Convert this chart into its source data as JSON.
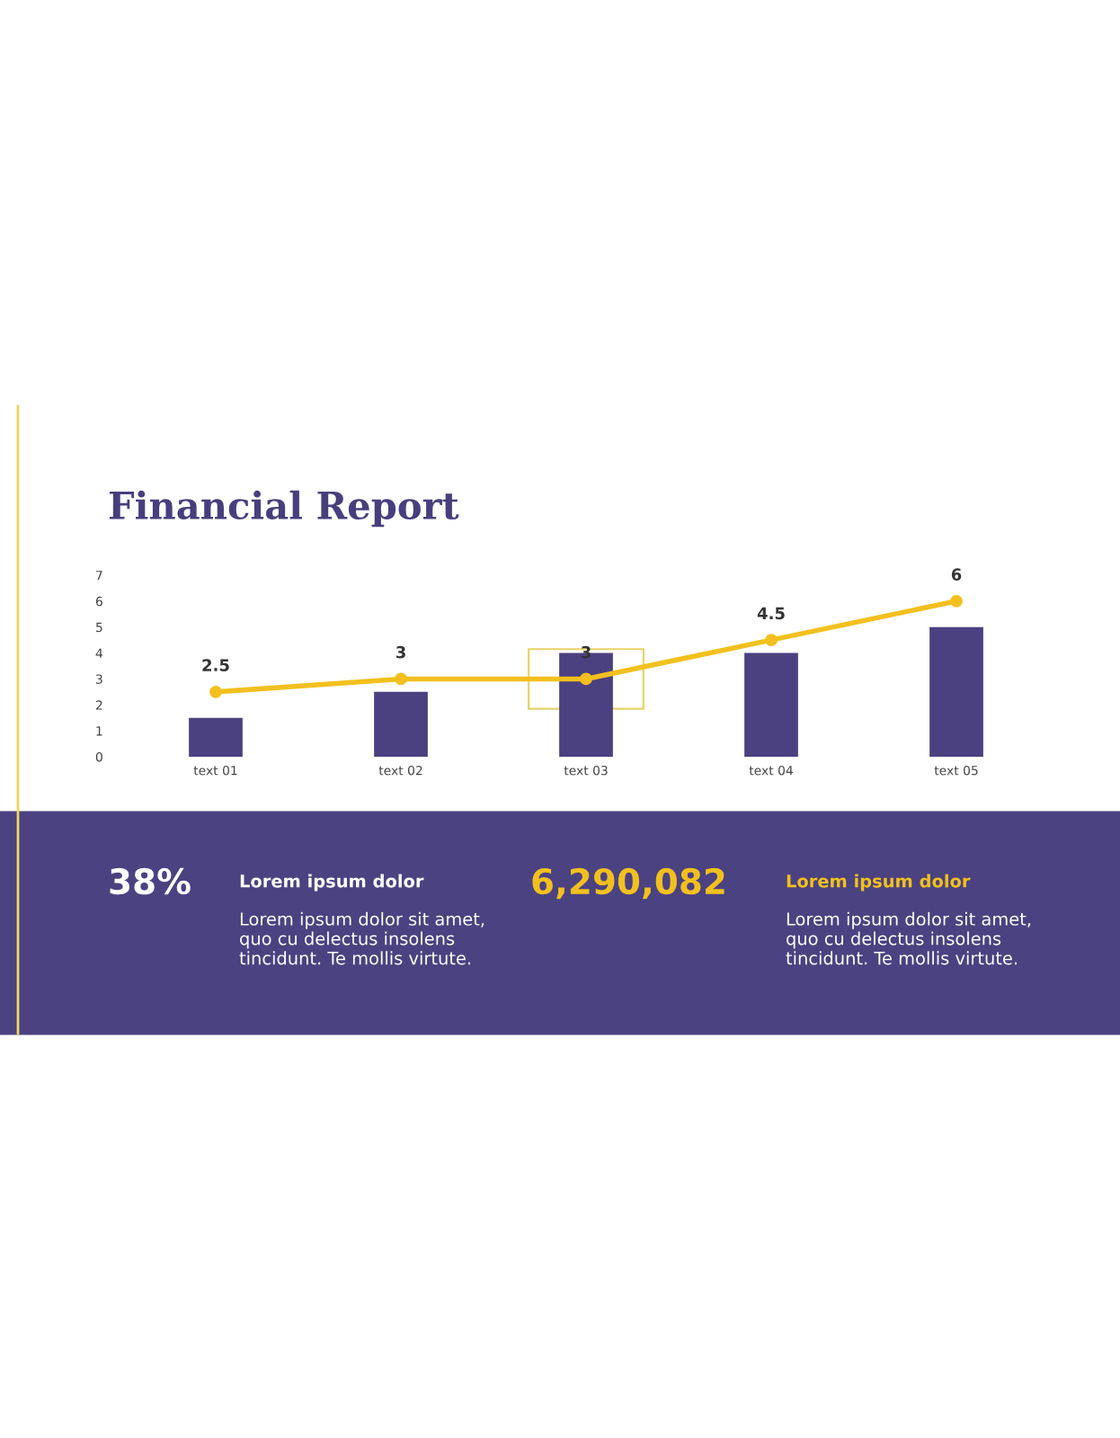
{
  "chart_data": {
    "type": "bar",
    "title": "Financial Report",
    "categories": [
      "text 01",
      "text 02",
      "text 03",
      "text 04",
      "text 05"
    ],
    "series": [
      {
        "color": "#4b4180",
        "values": [
          1.5,
          2.5,
          4,
          4,
          5
        ]
      },
      {
        "type": "line",
        "color": "#f2c01e",
        "values": [
          2.5,
          3,
          3,
          4.5,
          6
        ],
        "value_labels": [
          "2.5",
          "3",
          "3",
          "4.5",
          "6"
        ],
        "marker": "circle"
      }
    ],
    "ylim": [
      0,
      7
    ],
    "yticks": [
      0,
      1,
      2,
      3,
      4,
      5,
      6,
      7
    ],
    "grid": false,
    "legend": false,
    "annotations": [
      "38%",
      "Lorem ipsum dolor",
      "Lorem ipsum dolor sit amet,\nquo cu delectus insolens\ntincidunt. Te mollis virtute.",
      "6,290,082",
      "Lorem ipsum dolor",
      "Lorem ipsum dolor sit amet,\nquo cu delectus insolens\ntincidunt. Te mollis virtute."
    ]
  }
}
